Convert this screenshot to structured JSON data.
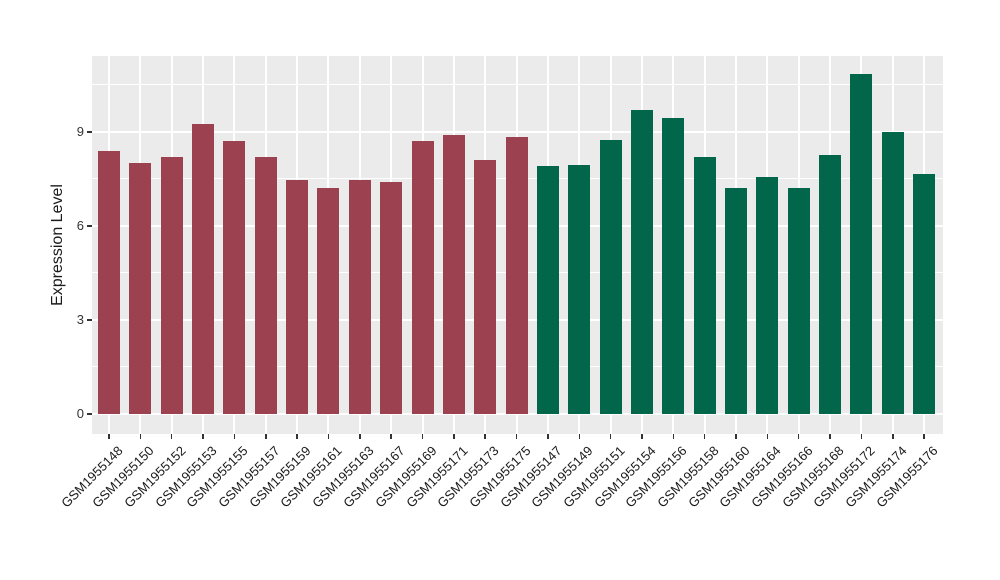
{
  "chart_data": {
    "type": "bar",
    "title": "",
    "xlabel": "",
    "ylabel": "Expression Level",
    "ylim": [
      0,
      11.4
    ],
    "yticks": [
      0,
      3,
      6,
      9
    ],
    "yticks_minor": [
      1.5,
      4.5,
      7.5,
      10.5
    ],
    "grid": "white major and minor gridlines on gray panel, vertical gridline at each bar center",
    "legend_position": "none",
    "bars": [
      {
        "label": "GSM1955148",
        "value": 8.4,
        "group": "maroon"
      },
      {
        "label": "GSM1955150",
        "value": 8.0,
        "group": "maroon"
      },
      {
        "label": "GSM1955152",
        "value": 8.2,
        "group": "maroon"
      },
      {
        "label": "GSM1955153",
        "value": 9.25,
        "group": "maroon"
      },
      {
        "label": "GSM1955155",
        "value": 8.7,
        "group": "maroon"
      },
      {
        "label": "GSM1955157",
        "value": 8.2,
        "group": "maroon"
      },
      {
        "label": "GSM1955159",
        "value": 7.45,
        "group": "maroon"
      },
      {
        "label": "GSM1955161",
        "value": 7.2,
        "group": "maroon"
      },
      {
        "label": "GSM1955163",
        "value": 7.45,
        "group": "maroon"
      },
      {
        "label": "GSM1955167",
        "value": 7.4,
        "group": "maroon"
      },
      {
        "label": "GSM1955169",
        "value": 8.7,
        "group": "maroon"
      },
      {
        "label": "GSM1955171",
        "value": 8.9,
        "group": "maroon"
      },
      {
        "label": "GSM1955173",
        "value": 8.1,
        "group": "maroon"
      },
      {
        "label": "GSM1955175",
        "value": 8.85,
        "group": "maroon"
      },
      {
        "label": "GSM1955147",
        "value": 7.9,
        "group": "green"
      },
      {
        "label": "GSM1955149",
        "value": 7.95,
        "group": "green"
      },
      {
        "label": "GSM1955151",
        "value": 8.75,
        "group": "green"
      },
      {
        "label": "GSM1955154",
        "value": 9.7,
        "group": "green"
      },
      {
        "label": "GSM1955156",
        "value": 9.45,
        "group": "green"
      },
      {
        "label": "GSM1955158",
        "value": 8.2,
        "group": "green"
      },
      {
        "label": "GSM1955160",
        "value": 7.2,
        "group": "green"
      },
      {
        "label": "GSM1955164",
        "value": 7.55,
        "group": "green"
      },
      {
        "label": "GSM1955166",
        "value": 7.2,
        "group": "green"
      },
      {
        "label": "GSM1955168",
        "value": 8.25,
        "group": "green"
      },
      {
        "label": "GSM1955172",
        "value": 10.85,
        "group": "green"
      },
      {
        "label": "GSM1955174",
        "value": 9.0,
        "group": "green"
      },
      {
        "label": "GSM1955176",
        "value": 7.65,
        "group": "green"
      }
    ],
    "group_colors": {
      "maroon": "#9B4150",
      "green": "#02664A"
    }
  },
  "style": {
    "panel_bg": "#EBEBEB",
    "grid_color": "#FFFFFF",
    "tick_color": "#333333",
    "y_text_color": "#333333",
    "x_text_color": "#1a1a1a"
  }
}
